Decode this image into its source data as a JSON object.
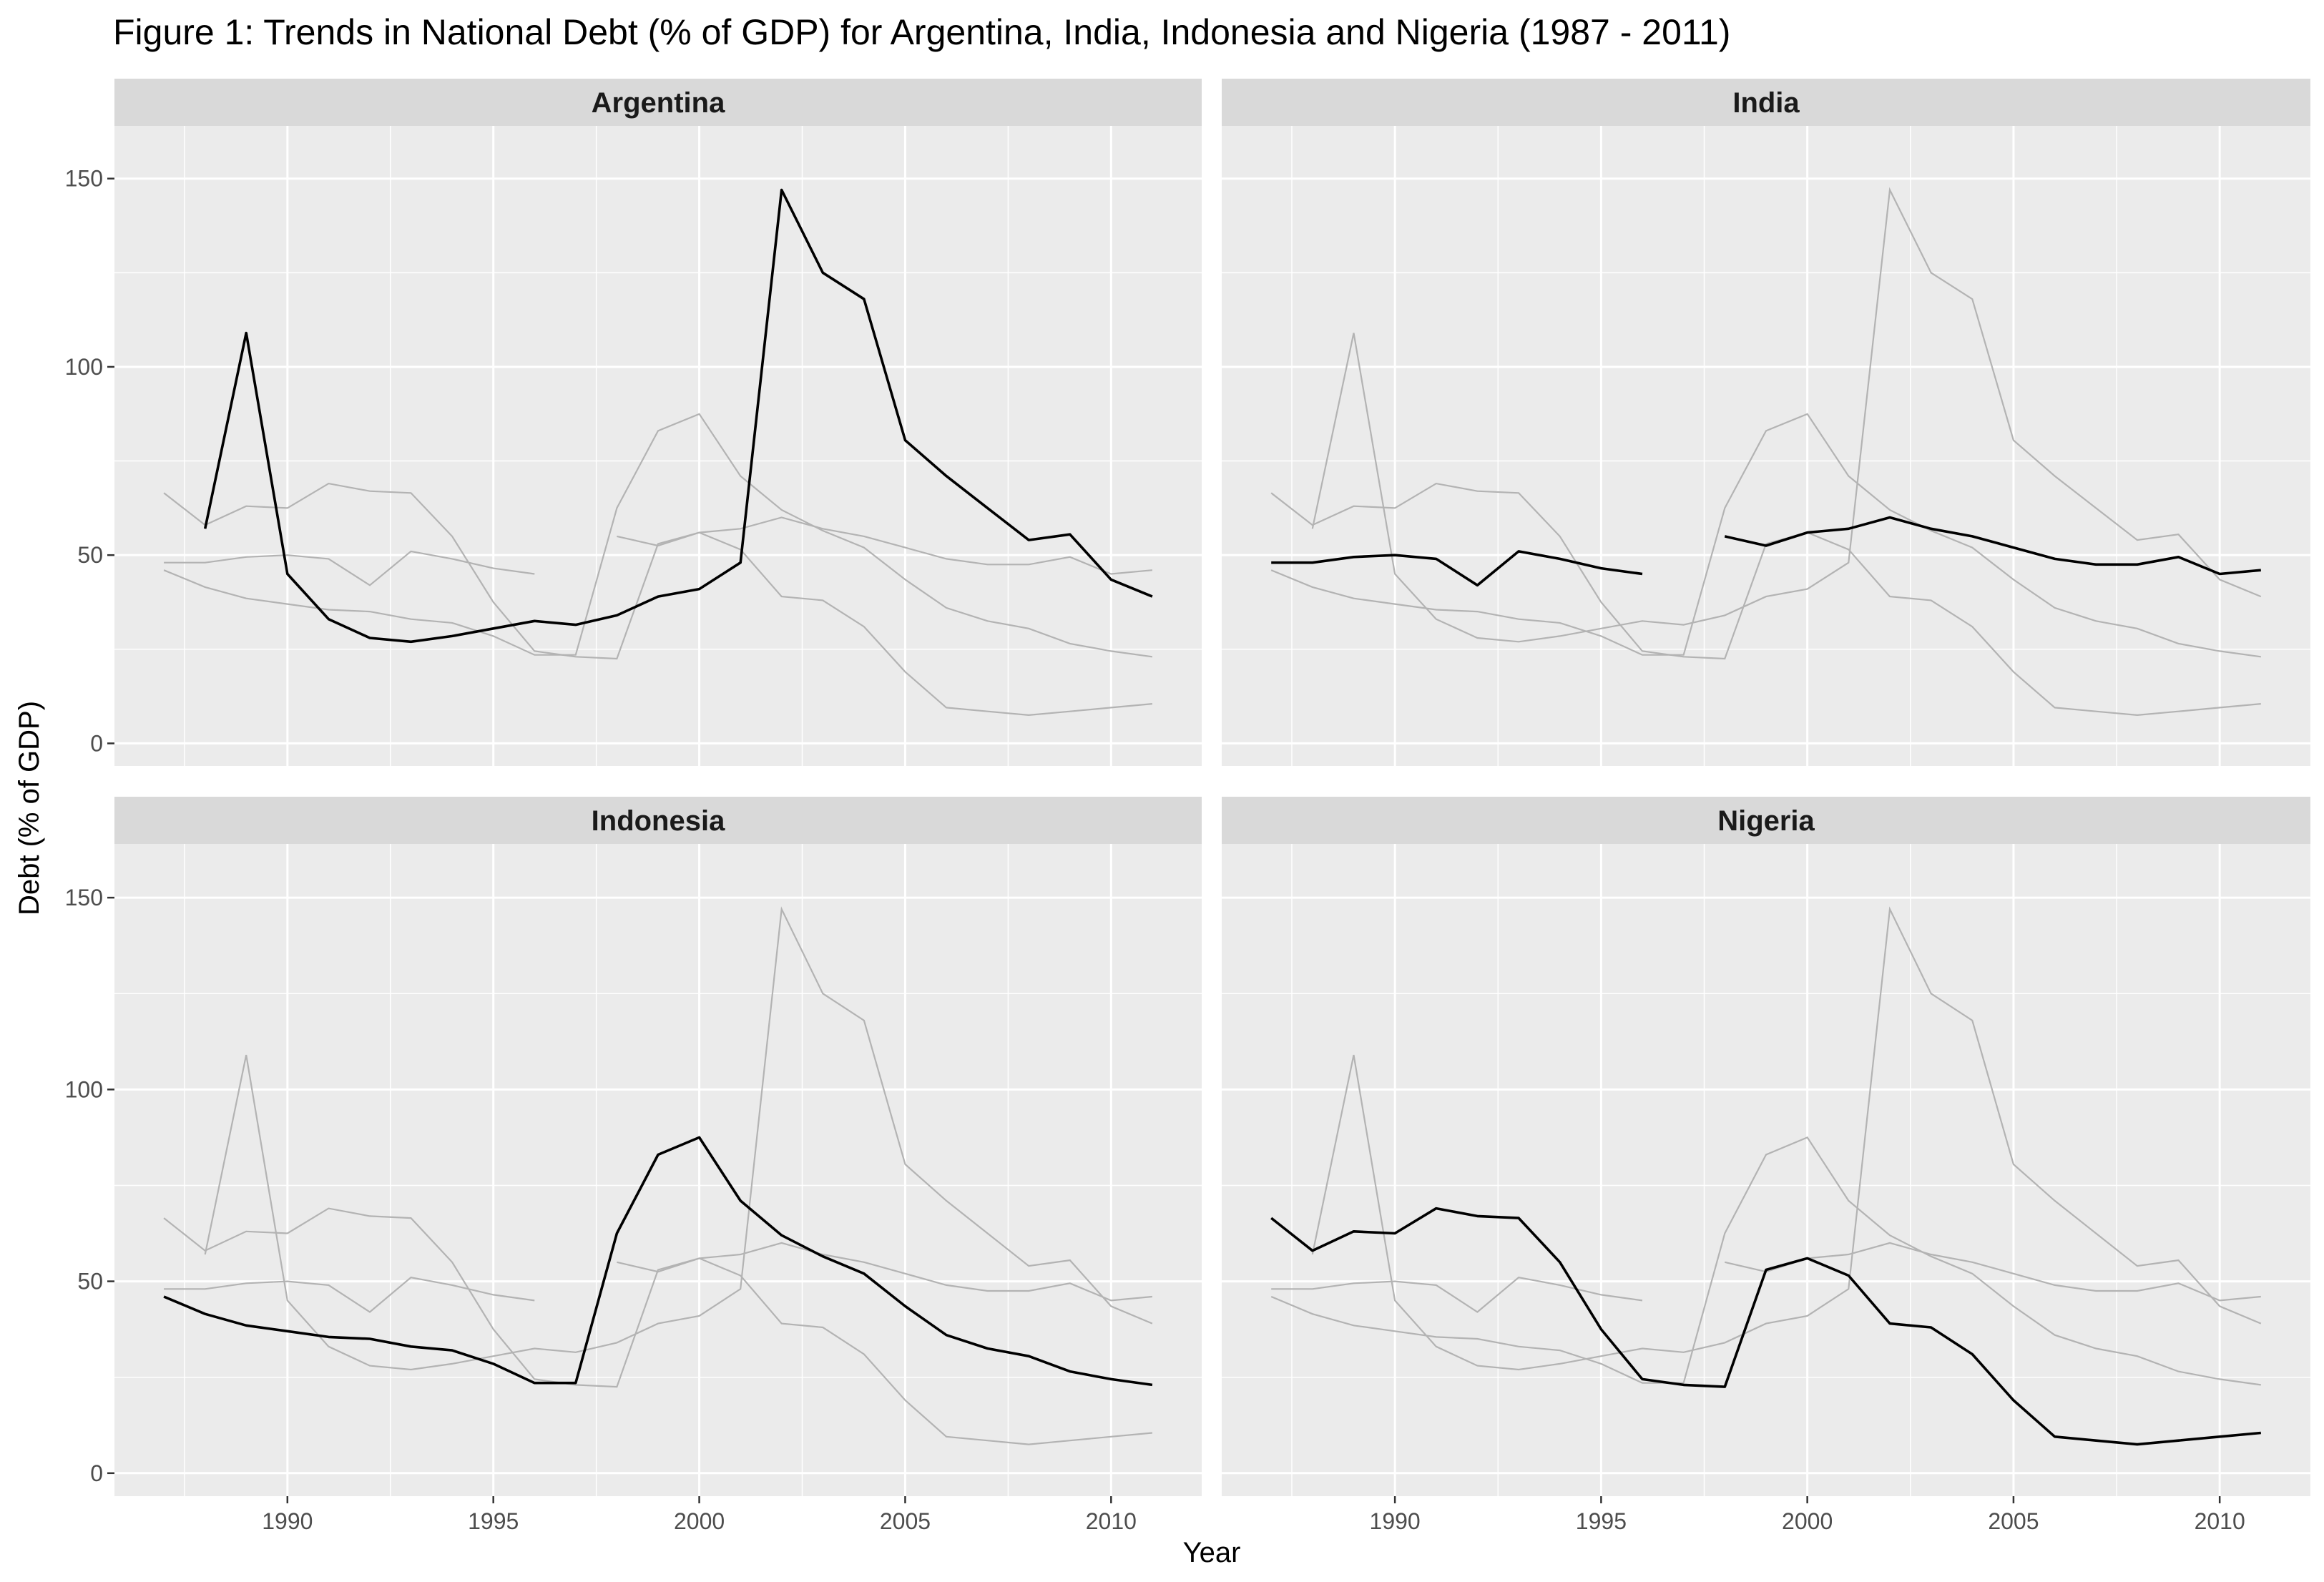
{
  "chart_data": {
    "type": "line",
    "title": "Figure 1: Trends in National Debt (% of GDP) for Argentina, India, Indonesia and Nigeria (1987 - 2011)",
    "xlabel": "Year",
    "ylabel": "Debt (% of GDP)",
    "xlim": [
      1987,
      2011
    ],
    "ylim": [
      0,
      150
    ],
    "x_ticks": [
      1990,
      1995,
      2000,
      2005,
      2010
    ],
    "y_ticks": [
      0,
      50,
      100,
      150
    ],
    "grid": true,
    "facets": [
      "Argentina",
      "India",
      "Indonesia",
      "Nigeria"
    ],
    "highlight_color": "#000000",
    "background_color": "#b3b3b3",
    "panel_color": "#ebebeb",
    "strip_color": "#d9d9d9",
    "series": [
      {
        "name": "Argentina",
        "x": [
          1988,
          1989,
          1990,
          1991,
          1992,
          1993,
          1994,
          1995,
          1996,
          1997,
          1998,
          1999,
          2000,
          2001,
          2002,
          2003,
          2004,
          2005,
          2006,
          2007,
          2008,
          2009,
          2010,
          2011
        ],
        "values": [
          57,
          109,
          45,
          33,
          28,
          27,
          28.5,
          30.5,
          32.5,
          31.5,
          34,
          39,
          41,
          48,
          147,
          125,
          118,
          80.5,
          71,
          62.5,
          54,
          55.5,
          43.5,
          39
        ]
      },
      {
        "name": "India",
        "x": [
          1987,
          1988,
          1989,
          1990,
          1991,
          1992,
          1993,
          1994,
          1995,
          1996,
          1997,
          1998,
          1999,
          2000,
          2001,
          2002,
          2003,
          2004,
          2005,
          2006,
          2007,
          2008,
          2009,
          2010,
          2011
        ],
        "values": [
          48,
          48,
          49.5,
          50,
          49,
          42,
          51,
          49,
          46.5,
          45,
          null,
          55,
          52.5,
          56,
          57,
          60,
          57,
          55,
          52,
          49,
          47.5,
          47.5,
          49.5,
          45,
          46
        ]
      },
      {
        "name": "Indonesia",
        "x": [
          1987,
          1988,
          1989,
          1990,
          1991,
          1992,
          1993,
          1994,
          1995,
          1996,
          1997,
          1998,
          1999,
          2000,
          2001,
          2002,
          2003,
          2004,
          2005,
          2006,
          2007,
          2008,
          2009,
          2010,
          2011
        ],
        "values": [
          46,
          41.5,
          38.5,
          37,
          35.5,
          35,
          33,
          32,
          28.5,
          23.5,
          23.5,
          62.5,
          83,
          87.5,
          71,
          62,
          56.5,
          52,
          43.5,
          36,
          32.5,
          30.5,
          26.5,
          24.5,
          23
        ]
      },
      {
        "name": "Nigeria",
        "x": [
          1987,
          1988,
          1989,
          1990,
          1991,
          1992,
          1993,
          1994,
          1995,
          1996,
          1997,
          1998,
          1999,
          2000,
          2001,
          2002,
          2003,
          2004,
          2005,
          2006,
          2007,
          2008,
          2009,
          2010,
          2011
        ],
        "values": [
          66.5,
          58,
          63,
          62.5,
          69,
          67,
          66.5,
          55,
          37.5,
          24.5,
          23,
          22.5,
          53,
          56,
          51.5,
          39,
          38,
          31,
          19,
          9.5,
          8.5,
          7.5,
          8.5,
          9.5,
          10.5
        ]
      }
    ]
  }
}
